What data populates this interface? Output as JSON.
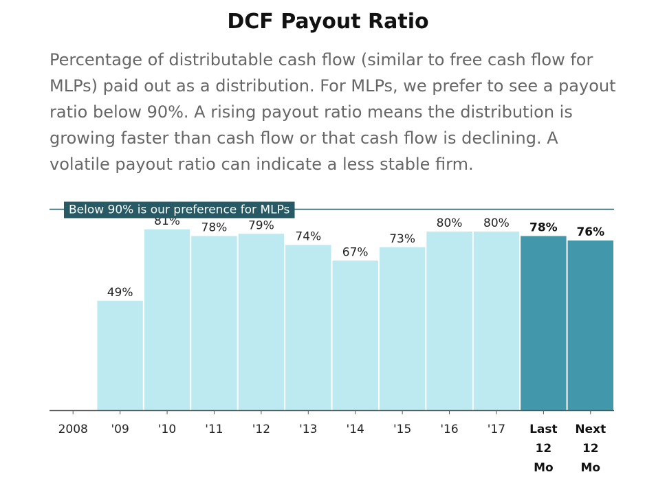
{
  "header": {
    "title": "DCF Payout Ratio",
    "subtitle": "Percentage of distributable cash flow (similar to free cash flow for MLPs) paid out as a distribution. For MLPs, we prefer to see a payout ratio below 90%. A rising payout ratio means the distribution is growing faster than cash flow or that cash flow is declining. A volatile payout ratio can indicate a less stable firm."
  },
  "chart_data": {
    "type": "bar",
    "title": "DCF Payout Ratio",
    "xlabel": "",
    "ylabel": "",
    "ylim": [
      0,
      90
    ],
    "grid": false,
    "categories": [
      [
        "2008"
      ],
      [
        "'09"
      ],
      [
        "'10"
      ],
      [
        "'11"
      ],
      [
        "'12"
      ],
      [
        "'13"
      ],
      [
        "'14"
      ],
      [
        "'15"
      ],
      [
        "'16"
      ],
      [
        "'17"
      ],
      [
        "Last",
        "12",
        "Mo"
      ],
      [
        "Next",
        "12",
        "Mo"
      ]
    ],
    "values": [
      null,
      49,
      81,
      78,
      79,
      74,
      67,
      73,
      80,
      80,
      78,
      76
    ],
    "value_labels": [
      "",
      "49%",
      "81%",
      "78%",
      "79%",
      "74%",
      "67%",
      "73%",
      "80%",
      "80%",
      "78%",
      "76%"
    ],
    "highlighted": [
      false,
      false,
      false,
      false,
      false,
      false,
      false,
      false,
      false,
      false,
      true,
      true
    ],
    "reference_line": {
      "value": 90,
      "label": "Below 90% is our preference for MLPs"
    },
    "colors": {
      "bar": "#bde9f0",
      "bar_highlight": "#4298aa",
      "reference_line": "#285a66",
      "axis": "#555555"
    }
  }
}
